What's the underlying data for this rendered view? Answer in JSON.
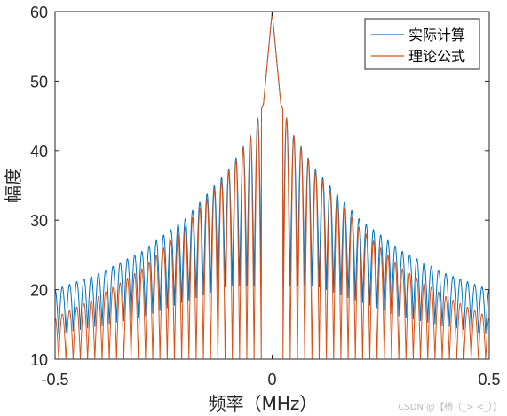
{
  "chart_data": {
    "type": "line",
    "title": "",
    "xlabel": "频率（MHz）",
    "ylabel": "幅度",
    "xlim": [
      -0.5,
      0.5
    ],
    "ylim": [
      10,
      60
    ],
    "xticks": [
      -0.5,
      0,
      0.5
    ],
    "xtick_labels": [
      "-0.5",
      "0",
      "0.5"
    ],
    "yticks": [
      10,
      20,
      30,
      40,
      50,
      60
    ],
    "ytick_labels": [
      "10",
      "20",
      "30",
      "40",
      "50",
      "60"
    ],
    "grid": false,
    "legend_position": "top-right",
    "peak": {
      "x": 0,
      "y": 60
    },
    "series": [
      {
        "name": "实际计算",
        "color": "#0072BD",
        "peaks": [
          {
            "x": 0.0,
            "y": 60
          },
          {
            "x": 0.02,
            "y": 46.7
          },
          {
            "x": 0.05,
            "y": 42.2
          },
          {
            "x": 0.1,
            "y": 37.3
          },
          {
            "x": 0.2,
            "y": 30.2
          },
          {
            "x": 0.3,
            "y": 25.5
          },
          {
            "x": 0.4,
            "y": 22.3
          },
          {
            "x": 0.5,
            "y": 20.0
          }
        ],
        "valleys": [
          {
            "x": 0.1,
            "y": 20.5
          },
          {
            "x": 0.3,
            "y": 16.0
          },
          {
            "x": 0.5,
            "y": 13.5
          }
        ]
      },
      {
        "name": "理论公式",
        "color": "#D95319",
        "peaks": [
          {
            "x": 0.0,
            "y": 60
          },
          {
            "x": 0.02,
            "y": 46.7
          },
          {
            "x": 0.05,
            "y": 42.0
          },
          {
            "x": 0.1,
            "y": 37.0
          },
          {
            "x": 0.2,
            "y": 29.0
          },
          {
            "x": 0.3,
            "y": 23.0
          },
          {
            "x": 0.4,
            "y": 19.0
          },
          {
            "x": 0.5,
            "y": 16.0
          }
        ],
        "valleys": [
          {
            "x": 0.1,
            "y": 10
          },
          {
            "x": 0.3,
            "y": 10
          },
          {
            "x": 0.5,
            "y": 10
          }
        ]
      }
    ]
  },
  "watermark": "CSDN @【杨（_> <_）】"
}
